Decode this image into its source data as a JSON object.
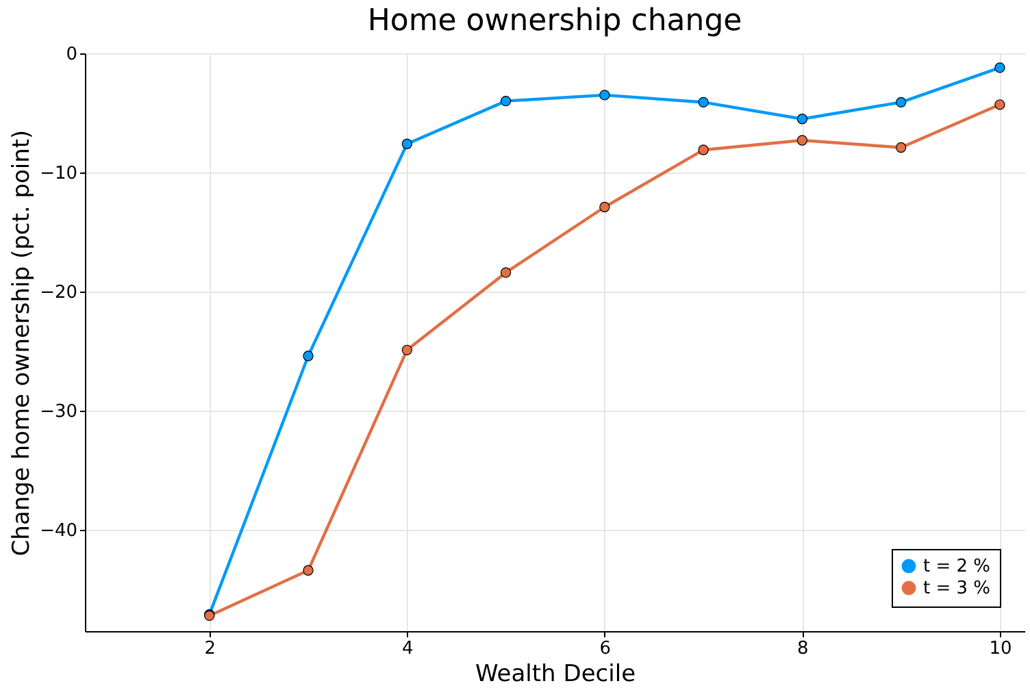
{
  "chart_data": {
    "type": "line",
    "title": "Home ownership change",
    "xlabel": "Wealth Decile",
    "ylabel": "Change home ownership (pct. point)",
    "x": [
      2,
      3,
      4,
      5,
      6,
      7,
      8,
      9,
      10
    ],
    "series": [
      {
        "name": "t = 2 %",
        "color": "#009af9",
        "values": [
          -47.1,
          -25.4,
          -7.6,
          -4.0,
          -3.5,
          -4.1,
          -5.5,
          -4.1,
          -1.2
        ]
      },
      {
        "name": "t = 3 %",
        "color": "#e26f46",
        "values": [
          -47.2,
          -43.4,
          -24.9,
          -18.4,
          -12.9,
          -8.1,
          -7.3,
          -7.9,
          -4.3
        ]
      }
    ],
    "xlim": [
      0.74,
      10.25
    ],
    "xticks": [
      2,
      4,
      6,
      8,
      10
    ],
    "ylim": [
      -48.5,
      0
    ],
    "yticks": [
      -40,
      -30,
      -20,
      -10,
      0
    ],
    "grid": true,
    "legend": "bottom right",
    "marker": "circle",
    "line_style": "solid"
  }
}
